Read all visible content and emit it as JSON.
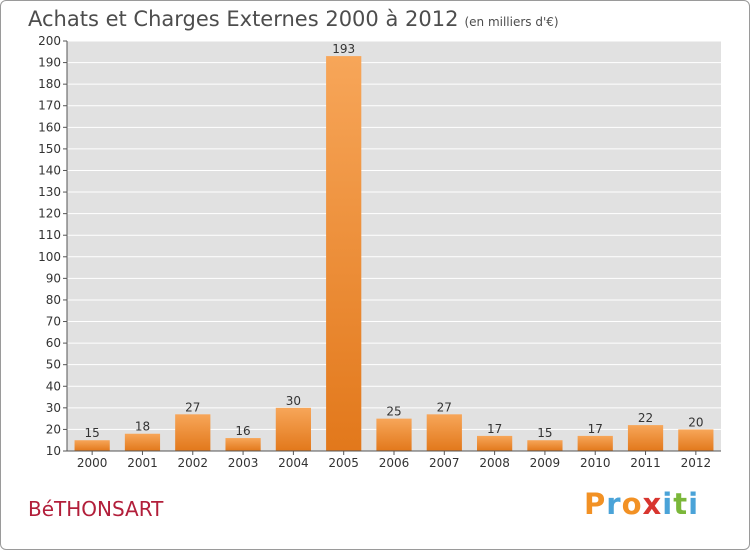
{
  "chart_data": {
    "type": "bar",
    "title": "Achats et Charges Externes 2000 à 2012",
    "unit_note": "(en milliers d'€)",
    "categories": [
      "2000",
      "2001",
      "2002",
      "2003",
      "2004",
      "2005",
      "2006",
      "2007",
      "2008",
      "2009",
      "2010",
      "2011",
      "2012"
    ],
    "values": [
      15,
      18,
      27,
      16,
      30,
      193,
      25,
      27,
      17,
      15,
      17,
      22,
      20
    ],
    "ylim": [
      10,
      200
    ],
    "yticks": [
      10,
      20,
      30,
      40,
      50,
      60,
      70,
      80,
      90,
      100,
      110,
      120,
      130,
      140,
      150,
      160,
      170,
      180,
      190,
      200
    ],
    "grid": true,
    "bar_color": "#f0902e",
    "xlabel": "",
    "ylabel": ""
  },
  "commune": "BéTHONSART",
  "logo": {
    "text": "Proxiti",
    "colors": [
      "#f29124",
      "#4aa3d8",
      "#f29124",
      "#d8352f",
      "#4aa3d8",
      "#7bb73a",
      "#4aa3d8"
    ]
  }
}
